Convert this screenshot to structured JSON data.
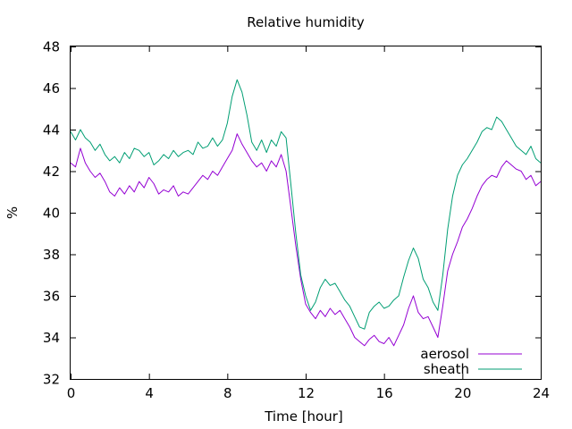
{
  "chart_data": {
    "type": "line",
    "title": "Relative humidity",
    "xlabel": "Time [hour]",
    "ylabel": "%",
    "xlim": [
      0,
      24
    ],
    "ylim": [
      32,
      48
    ],
    "xticks": [
      0,
      4,
      8,
      12,
      16,
      20,
      24
    ],
    "yticks": [
      32,
      34,
      36,
      38,
      40,
      42,
      44,
      46,
      48
    ],
    "grid": false,
    "legend_position": "bottom-right",
    "series": [
      {
        "name": "aerosol",
        "color": "#9400d3",
        "x": [
          0,
          0.25,
          0.5,
          0.75,
          1,
          1.25,
          1.5,
          1.75,
          2,
          2.25,
          2.5,
          2.75,
          3,
          3.25,
          3.5,
          3.75,
          4,
          4.25,
          4.5,
          4.75,
          5,
          5.25,
          5.5,
          5.75,
          6,
          6.25,
          6.5,
          6.75,
          7,
          7.25,
          7.5,
          7.75,
          8,
          8.25,
          8.5,
          8.75,
          9,
          9.25,
          9.5,
          9.75,
          10,
          10.25,
          10.5,
          10.75,
          11,
          11.25,
          11.5,
          11.75,
          12,
          12.25,
          12.5,
          12.75,
          13,
          13.25,
          13.5,
          13.75,
          14,
          14.25,
          14.5,
          14.75,
          15,
          15.25,
          15.5,
          15.75,
          16,
          16.25,
          16.5,
          16.75,
          17,
          17.25,
          17.5,
          17.75,
          18,
          18.25,
          18.5,
          18.75,
          19,
          19.25,
          19.5,
          19.75,
          20,
          20.25,
          20.5,
          20.75,
          21,
          21.25,
          21.5,
          21.75,
          22,
          22.25,
          22.5,
          22.75,
          23,
          23.25,
          23.5,
          23.75,
          24
        ],
        "y": [
          42.4,
          42.2,
          43.1,
          42.4,
          42.0,
          41.7,
          41.9,
          41.5,
          41.0,
          40.8,
          41.2,
          40.9,
          41.3,
          41.0,
          41.5,
          41.2,
          41.7,
          41.4,
          40.9,
          41.1,
          41.0,
          41.3,
          40.8,
          41.0,
          40.9,
          41.2,
          41.5,
          41.8,
          41.6,
          42.0,
          41.8,
          42.2,
          42.6,
          43.0,
          43.8,
          43.3,
          42.9,
          42.5,
          42.2,
          42.4,
          42.0,
          42.5,
          42.2,
          42.8,
          42.0,
          40.2,
          38.4,
          36.8,
          35.6,
          35.2,
          34.9,
          35.3,
          35.0,
          35.4,
          35.1,
          35.3,
          34.9,
          34.5,
          34.0,
          33.8,
          33.6,
          33.9,
          34.1,
          33.8,
          33.7,
          34.0,
          33.6,
          34.1,
          34.6,
          35.4,
          36.0,
          35.2,
          34.9,
          35.0,
          34.5,
          34.0,
          35.5,
          37.2,
          38.0,
          38.6,
          39.3,
          39.7,
          40.2,
          40.8,
          41.3,
          41.6,
          41.8,
          41.7,
          42.2,
          42.5,
          42.3,
          42.1,
          42.0,
          41.6,
          41.8,
          41.3,
          41.5
        ]
      },
      {
        "name": "sheath",
        "color": "#009e73",
        "x": [
          0,
          0.25,
          0.5,
          0.75,
          1,
          1.25,
          1.5,
          1.75,
          2,
          2.25,
          2.5,
          2.75,
          3,
          3.25,
          3.5,
          3.75,
          4,
          4.25,
          4.5,
          4.75,
          5,
          5.25,
          5.5,
          5.75,
          6,
          6.25,
          6.5,
          6.75,
          7,
          7.25,
          7.5,
          7.75,
          8,
          8.25,
          8.5,
          8.75,
          9,
          9.25,
          9.5,
          9.75,
          10,
          10.25,
          10.5,
          10.75,
          11,
          11.25,
          11.5,
          11.75,
          12,
          12.25,
          12.5,
          12.75,
          13,
          13.25,
          13.5,
          13.75,
          14,
          14.25,
          14.5,
          14.75,
          15,
          15.25,
          15.5,
          15.75,
          16,
          16.25,
          16.5,
          16.75,
          17,
          17.25,
          17.5,
          17.75,
          18,
          18.25,
          18.5,
          18.75,
          19,
          19.25,
          19.5,
          19.75,
          20,
          20.25,
          20.5,
          20.75,
          21,
          21.25,
          21.5,
          21.75,
          22,
          22.25,
          22.5,
          22.75,
          23,
          23.25,
          23.5,
          23.75,
          24
        ],
        "y": [
          43.9,
          43.5,
          44.0,
          43.6,
          43.4,
          43.0,
          43.3,
          42.8,
          42.5,
          42.7,
          42.4,
          42.9,
          42.6,
          43.1,
          43.0,
          42.7,
          42.9,
          42.3,
          42.5,
          42.8,
          42.6,
          43.0,
          42.7,
          42.9,
          43.0,
          42.8,
          43.4,
          43.1,
          43.2,
          43.6,
          43.2,
          43.5,
          44.3,
          45.6,
          46.4,
          45.8,
          44.7,
          43.4,
          43.0,
          43.5,
          42.9,
          43.5,
          43.2,
          43.9,
          43.6,
          41.3,
          39.0,
          37.0,
          36.0,
          35.3,
          35.7,
          36.4,
          36.8,
          36.5,
          36.6,
          36.2,
          35.8,
          35.5,
          35.0,
          34.5,
          34.4,
          35.2,
          35.5,
          35.7,
          35.4,
          35.5,
          35.8,
          36.0,
          36.9,
          37.7,
          38.3,
          37.8,
          36.8,
          36.4,
          35.7,
          35.3,
          37.0,
          39.2,
          40.8,
          41.8,
          42.3,
          42.6,
          43.0,
          43.4,
          43.9,
          44.1,
          44.0,
          44.6,
          44.4,
          44.0,
          43.6,
          43.2,
          43.0,
          42.8,
          43.2,
          42.6,
          42.4
        ]
      }
    ]
  }
}
